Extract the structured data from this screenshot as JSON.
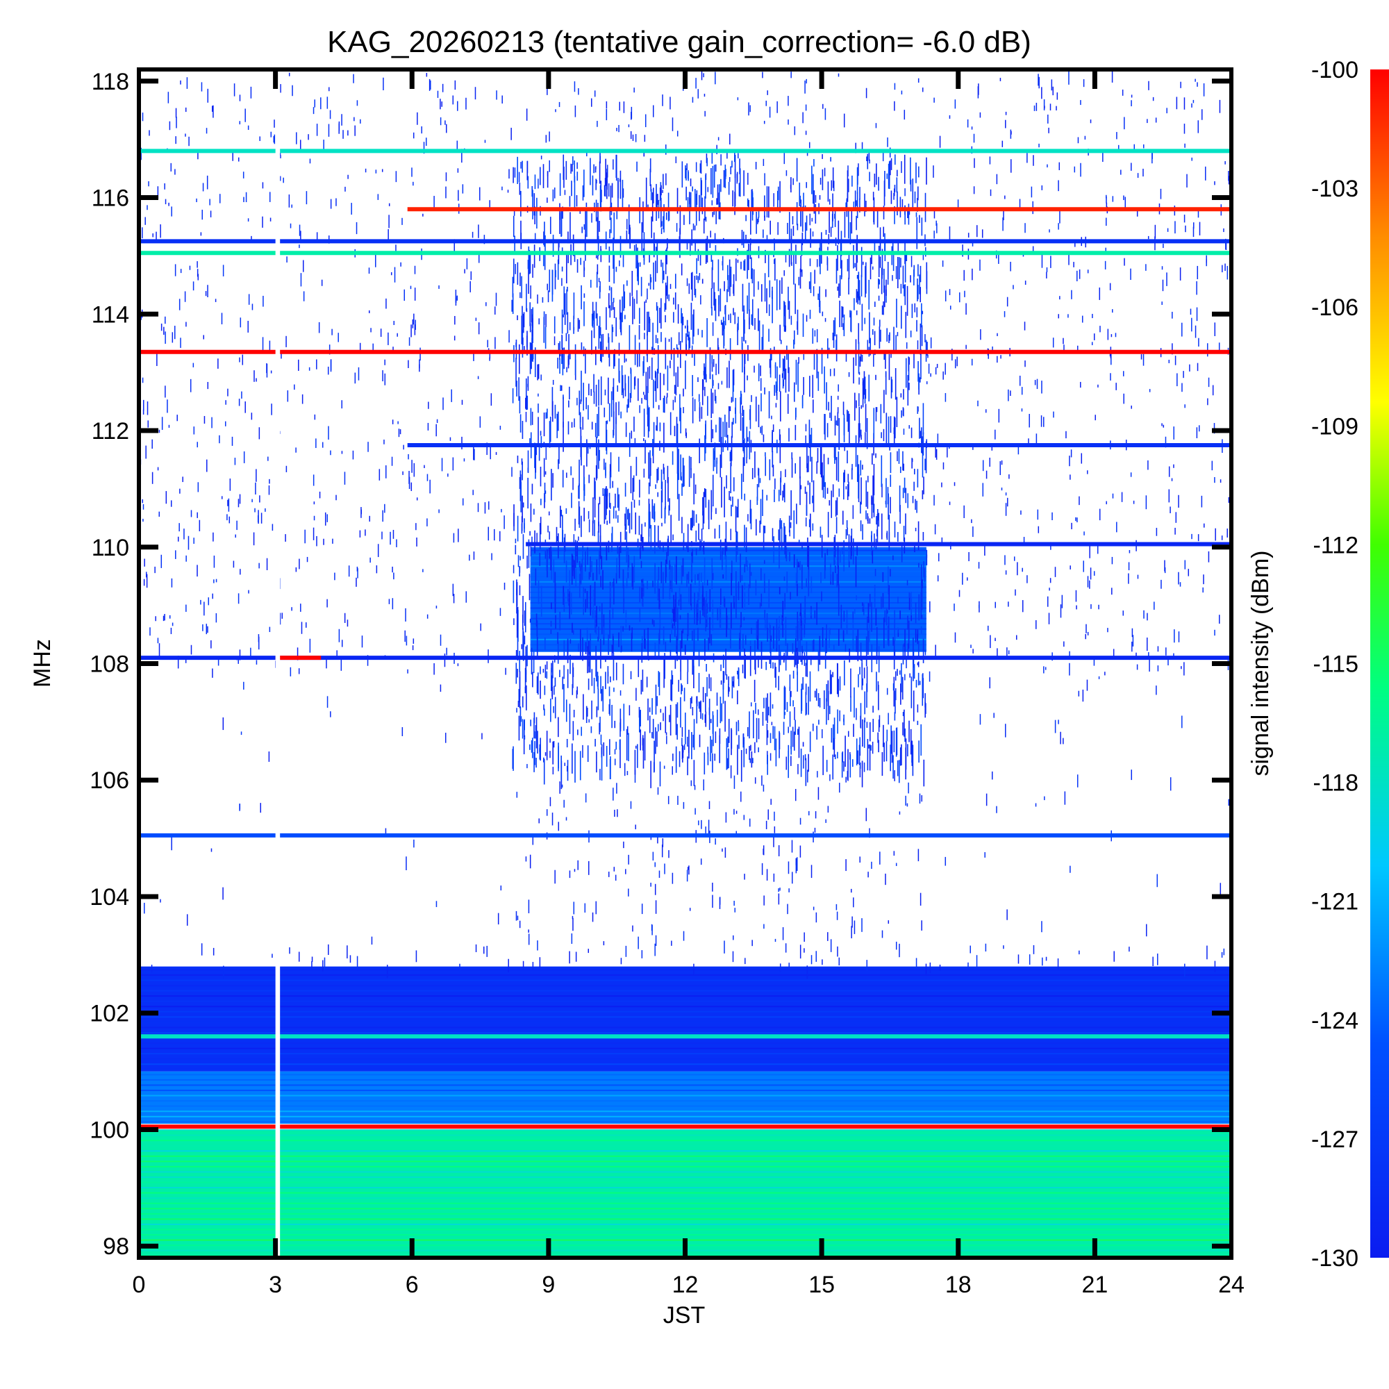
{
  "chart_data": {
    "type": "heatmap",
    "title": "KAG_20260213 (tentative gain_correction= -6.0 dB)",
    "xlabel": "JST",
    "ylabel": "MHz",
    "colorbar_label": "signal intensity (dBm)",
    "xlim": [
      0,
      24
    ],
    "ylim": [
      97.8,
      118.2
    ],
    "x_ticks": [
      "0",
      "3",
      "6",
      "9",
      "12",
      "15",
      "18",
      "21",
      "24"
    ],
    "y_ticks": [
      "98",
      "100",
      "102",
      "104",
      "106",
      "108",
      "110",
      "112",
      "114",
      "116",
      "118"
    ],
    "colorbar_ticks": [
      "-100",
      "-103",
      "-106",
      "-109",
      "-112",
      "-115",
      "-118",
      "-121",
      "-124",
      "-127",
      "-130"
    ],
    "color_range_dbm": [
      -130,
      -100
    ],
    "colormap": "rainbow (blue = weak, red = strong)",
    "data_gap_jst": [
      3.0,
      3.1
    ],
    "continuous_lines": [
      {
        "freq_mhz": 116.8,
        "start_jst": 0,
        "end_jst": 24,
        "dbm": -118
      },
      {
        "freq_mhz": 115.8,
        "start_jst": 5.9,
        "end_jst": 24,
        "dbm": -101
      },
      {
        "freq_mhz": 115.25,
        "start_jst": 0,
        "end_jst": 24,
        "dbm": -128
      },
      {
        "freq_mhz": 115.05,
        "start_jst": 0,
        "end_jst": 24,
        "dbm": -117
      },
      {
        "freq_mhz": 113.35,
        "start_jst": 0,
        "end_jst": 24,
        "dbm": -100
      },
      {
        "freq_mhz": 111.75,
        "start_jst": 5.9,
        "end_jst": 24,
        "dbm": -128
      },
      {
        "freq_mhz": 110.05,
        "start_jst": 8.5,
        "end_jst": 24,
        "dbm": -129
      },
      {
        "freq_mhz": 108.1,
        "start_jst": 0,
        "end_jst": 24,
        "dbm": -129
      },
      {
        "freq_mhz": 108.1,
        "start_jst": 3.0,
        "end_jst": 4.0,
        "dbm": -100
      },
      {
        "freq_mhz": 105.05,
        "start_jst": 0,
        "end_jst": 24,
        "dbm": -125
      },
      {
        "freq_mhz": 101.6,
        "start_jst": 0,
        "end_jst": 24,
        "dbm": -118
      },
      {
        "freq_mhz": 100.05,
        "start_jst": 0,
        "end_jst": 24,
        "dbm": -100
      }
    ],
    "bands": [
      {
        "freq_range_mhz": [
          97.8,
          100.0
        ],
        "start_jst": 0,
        "end_jst": 24,
        "dbm": -117
      },
      {
        "freq_range_mhz": [
          100.1,
          101.0
        ],
        "start_jst": 0,
        "end_jst": 24,
        "dbm": -123
      },
      {
        "freq_range_mhz": [
          101.0,
          102.8
        ],
        "start_jst": 0,
        "end_jst": 24,
        "dbm": -128
      },
      {
        "freq_range_mhz": [
          108.2,
          110.0
        ],
        "start_jst": 8.6,
        "end_jst": 17.3,
        "dbm": -124
      }
    ],
    "daytime_activity_jst": [
      8.2,
      17.3
    ]
  },
  "colors": {
    "colormap_stops": [
      "#0b1cf0",
      "#0050ff",
      "#00c8ff",
      "#00ff80",
      "#40ff00",
      "#ffff00",
      "#ff8c00",
      "#ff0000"
    ]
  }
}
